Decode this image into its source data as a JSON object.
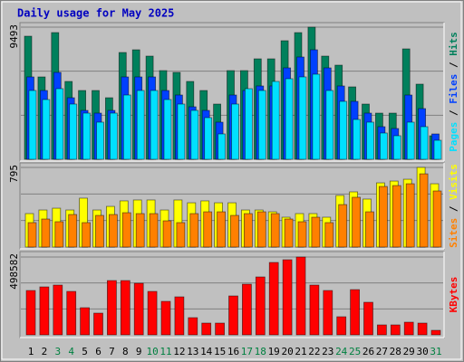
{
  "chart_data": [
    {
      "type": "bar",
      "title": "Daily usage for May 2025",
      "legend_separator": " / ",
      "ylim": [
        0,
        9493
      ],
      "yticks": [
        9493
      ],
      "grid": true,
      "series": [
        {
          "name": "Hits",
          "color": "#00805c",
          "values": [
            8843,
            5917,
            9103,
            5592,
            4941,
            4941,
            4421,
            7672,
            7867,
            7412,
            6372,
            6242,
            5592,
            4941,
            3966,
            6372,
            6372,
            7217,
            7217,
            8518,
            9100,
            9493,
            7412,
            6762,
            5202,
            3966,
            3316,
            3316,
            7932,
            5397,
            1690
          ]
        },
        {
          "name": "Files",
          "color": "#0040ff",
          "values": [
            5917,
            4941,
            6242,
            4421,
            3511,
            3316,
            3511,
            5917,
            5917,
            5917,
            4941,
            4616,
            3771,
            3511,
            2666,
            4616,
            4941,
            5267,
            5267,
            6567,
            7347,
            7867,
            6567,
            5267,
            4161,
            3316,
            2341,
            2211,
            4616,
            3641,
            1821
          ]
        },
        {
          "name": "Pages",
          "color": "#00e0ff",
          "values": [
            4941,
            4291,
            5072,
            3966,
            3316,
            2666,
            3316,
            4616,
            4941,
            4941,
            4291,
            3966,
            3511,
            2991,
            1821,
            3966,
            5072,
            4941,
            5592,
            5787,
            5917,
            6112,
            4941,
            4161,
            2861,
            2666,
            1886,
            1691,
            2666,
            2341,
            1365
          ]
        }
      ]
    },
    {
      "type": "bar",
      "legend_separator": " / ",
      "ylim": [
        0,
        795
      ],
      "yticks": [
        795
      ],
      "grid": true,
      "series": [
        {
          "name": "Visits",
          "color": "#ffff00",
          "values": [
            334,
            370,
            388,
            370,
            488,
            370,
            406,
            461,
            470,
            470,
            370,
            470,
            442,
            461,
            442,
            442,
            370,
            370,
            352,
            298,
            334,
            334,
            298,
            515,
            551,
            479,
            641,
            659,
            677,
            795,
            632
          ]
        },
        {
          "name": "Sites",
          "color": "#ff8000",
          "values": [
            244,
            280,
            253,
            325,
            244,
            316,
            325,
            343,
            334,
            334,
            262,
            244,
            334,
            352,
            352,
            316,
            334,
            352,
            334,
            280,
            253,
            298,
            244,
            424,
            497,
            352,
            605,
            614,
            632,
            731,
            560
          ]
        }
      ]
    },
    {
      "type": "bar",
      "ylim": [
        0,
        498582
      ],
      "yticks": [
        498582
      ],
      "grid": true,
      "categories": [
        "1",
        "2",
        "3",
        "4",
        "5",
        "6",
        "7",
        "8",
        "9",
        "10",
        "11",
        "12",
        "13",
        "14",
        "15",
        "16",
        "17",
        "18",
        "19",
        "20",
        "21",
        "22",
        "23",
        "24",
        "25",
        "26",
        "27",
        "28",
        "29",
        "30",
        "31"
      ],
      "category_colors": [
        "#000000",
        "#000000",
        "#008040",
        "#008040",
        "#000000",
        "#000000",
        "#000000",
        "#000000",
        "#000000",
        "#008040",
        "#008040",
        "#000000",
        "#000000",
        "#000000",
        "#000000",
        "#000000",
        "#008040",
        "#008040",
        "#000000",
        "#000000",
        "#000000",
        "#000000",
        "#000000",
        "#008040",
        "#008040",
        "#000000",
        "#000000",
        "#000000",
        "#000000",
        "#000000",
        "#008040"
      ],
      "series": [
        {
          "name": "KBytes",
          "color": "#ff0000",
          "values": [
            284053,
            307241,
            318835,
            278256,
            173910,
            139128,
            347820,
            347820,
            330429,
            278256,
            214489,
            243474,
            110143,
            75361,
            75361,
            249271,
            324632,
            371008,
            463760,
            481151,
            498582,
            318835,
            284053,
            115940,
            289850,
            208692,
            63767,
            63767,
            81158,
            75361,
            28985
          ]
        }
      ]
    }
  ]
}
